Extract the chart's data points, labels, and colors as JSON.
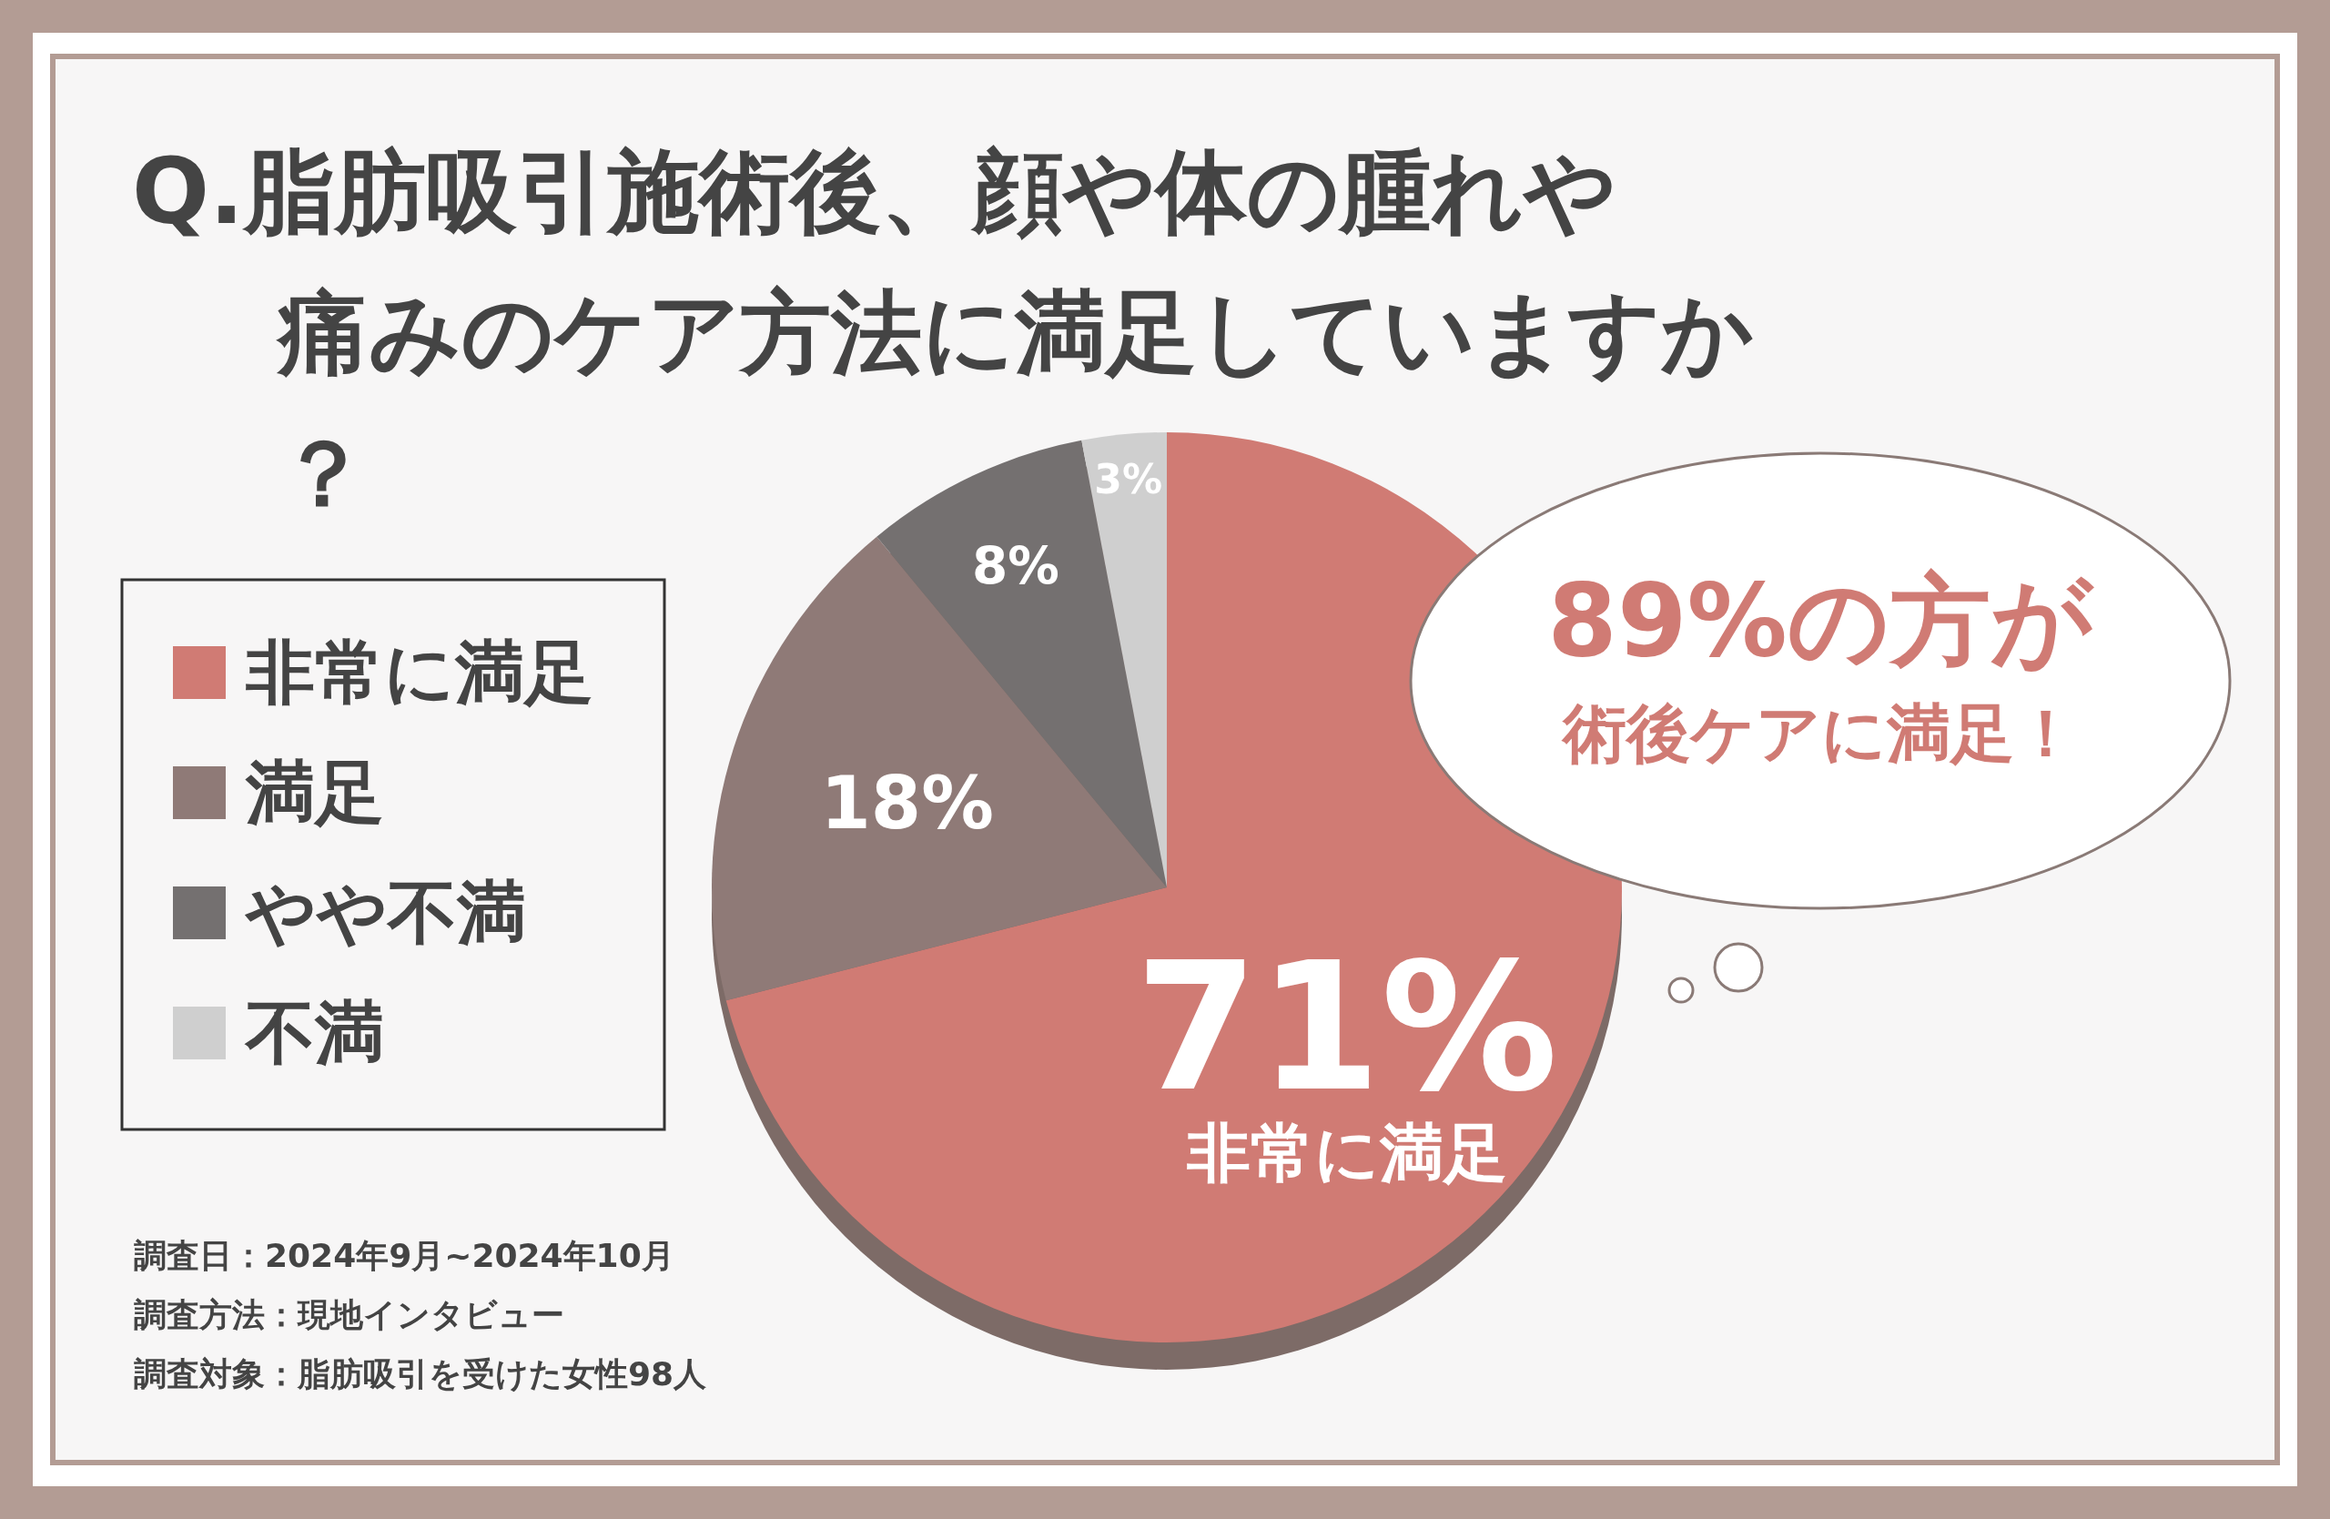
{
  "chart_data": {
    "type": "pie",
    "title": "Q.脂肪吸引施術後、顔や体の腫れや痛みのケア方法に満足していますか？",
    "categories": [
      "非常に満足",
      "満足",
      "やや不満",
      "不満"
    ],
    "values": [
      71,
      18,
      8,
      3
    ],
    "colors": [
      "#d07b74",
      "#8f7a77",
      "#747070",
      "#cfcfcf"
    ],
    "value_labels": [
      "71%",
      "18%",
      "8%",
      "3%"
    ],
    "legend": "left",
    "annotations": [
      "89%の方が",
      "術後ケアに満足！",
      "非常に満足",
      "調査日：2024年9月~2024年10月",
      "調査方法：現地インタビュー",
      "調査対象：脂肪吸引を受けた女性98人"
    ]
  }
}
